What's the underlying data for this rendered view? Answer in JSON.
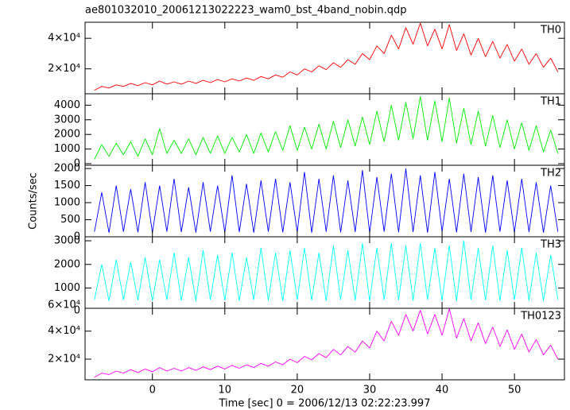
{
  "chart_data": [
    {
      "type": "line",
      "title": "ae801032010_20061213022223_wam0_bst_4band_nobin.qdp",
      "label": "TH0",
      "color": "#ff0000",
      "x": [
        -8,
        -7,
        -6,
        -5,
        -4,
        -3,
        -2,
        -1,
        0,
        1,
        2,
        3,
        4,
        5,
        6,
        7,
        8,
        9,
        10,
        11,
        12,
        13,
        14,
        15,
        16,
        17,
        18,
        19,
        20,
        21,
        22,
        23,
        24,
        25,
        26,
        27,
        28,
        29,
        30,
        31,
        32,
        33,
        34,
        35,
        36,
        37,
        38,
        39,
        40,
        41,
        42,
        43,
        44,
        45,
        46,
        47,
        48,
        49,
        50,
        51,
        52,
        53,
        54,
        55,
        56
      ],
      "values": [
        6000,
        8500,
        7500,
        9500,
        8500,
        10500,
        9000,
        11000,
        9500,
        12000,
        10000,
        11500,
        10000,
        12000,
        10500,
        12500,
        11000,
        13000,
        11500,
        13500,
        12000,
        14000,
        12500,
        15000,
        13500,
        16000,
        14500,
        18000,
        16000,
        20000,
        18000,
        22000,
        19500,
        24000,
        21000,
        26000,
        23000,
        30000,
        26000,
        35000,
        30000,
        42000,
        33000,
        47000,
        36000,
        50000,
        35000,
        46000,
        33000,
        49000,
        32000,
        43000,
        29000,
        40000,
        28000,
        38000,
        27000,
        36000,
        25000,
        33000,
        23000,
        30000,
        21000,
        27000,
        18000
      ],
      "xlim": [
        -9.3,
        56.9
      ],
      "ylim": [
        3700,
        50500
      ],
      "yticks": [
        {
          "value": 20000,
          "label": "2×10⁴"
        },
        {
          "value": 40000,
          "label": "4×10⁴"
        }
      ]
    },
    {
      "type": "line",
      "label": "TH1",
      "color": "#00ee00",
      "x": [
        -8,
        -7,
        -6,
        -5,
        -4,
        -3,
        -2,
        -1,
        0,
        1,
        2,
        3,
        4,
        5,
        6,
        7,
        8,
        9,
        10,
        11,
        12,
        13,
        14,
        15,
        16,
        17,
        18,
        19,
        20,
        21,
        22,
        23,
        24,
        25,
        26,
        27,
        28,
        29,
        30,
        31,
        32,
        33,
        34,
        35,
        36,
        37,
        38,
        39,
        40,
        41,
        42,
        43,
        44,
        45,
        46,
        47,
        48,
        49,
        50,
        51,
        52,
        53,
        54,
        55,
        56
      ],
      "values": [
        300,
        1300,
        500,
        1400,
        600,
        1500,
        500,
        1700,
        600,
        2400,
        700,
        1600,
        700,
        1700,
        600,
        1800,
        700,
        1900,
        700,
        1800,
        800,
        2000,
        700,
        2100,
        800,
        2200,
        900,
        2600,
        900,
        2500,
        1000,
        2700,
        1000,
        2900,
        1100,
        3000,
        1200,
        3200,
        1300,
        3600,
        1500,
        4000,
        1600,
        4200,
        1700,
        4600,
        1600,
        4300,
        1500,
        4500,
        1400,
        3800,
        1300,
        3600,
        1200,
        3300,
        1100,
        3000,
        1000,
        2800,
        900,
        2600,
        800,
        2300,
        700
      ],
      "xlim": [
        -9.3,
        56.9
      ],
      "ylim": [
        -110,
        4780
      ],
      "yticks": [
        0,
        1000,
        2000,
        3000,
        4000
      ]
    },
    {
      "type": "line",
      "label": "TH2",
      "ylabel": "Counts/sec",
      "color": "#0000ff",
      "x": [
        -8,
        -7,
        -6,
        -5,
        -4,
        -3,
        -2,
        -1,
        0,
        1,
        2,
        3,
        4,
        5,
        6,
        7,
        8,
        9,
        10,
        11,
        12,
        13,
        14,
        15,
        16,
        17,
        18,
        19,
        20,
        21,
        22,
        23,
        24,
        25,
        26,
        27,
        28,
        29,
        30,
        31,
        32,
        33,
        34,
        35,
        36,
        37,
        38,
        39,
        40,
        41,
        42,
        43,
        44,
        45,
        46,
        47,
        48,
        49,
        50,
        51,
        52,
        53,
        54,
        55,
        56
      ],
      "values": [
        150,
        1300,
        120,
        1500,
        150,
        1400,
        130,
        1600,
        120,
        1500,
        150,
        1700,
        140,
        1450,
        120,
        1600,
        150,
        1500,
        130,
        1800,
        140,
        1550,
        120,
        1650,
        150,
        1700,
        130,
        1600,
        140,
        1900,
        120,
        1700,
        150,
        1800,
        130,
        1650,
        140,
        1950,
        120,
        1750,
        150,
        1850,
        130,
        2000,
        140,
        1800,
        120,
        1900,
        150,
        1700,
        130,
        1850,
        140,
        1750,
        120,
        1800,
        150,
        1650,
        130,
        1700,
        140,
        1600,
        120,
        1500,
        150
      ],
      "xlim": [
        -9.3,
        56.9
      ],
      "ylim": [
        0,
        2095
      ],
      "yticks": [
        0,
        500,
        1000,
        1500,
        2000
      ]
    },
    {
      "type": "line",
      "label": "TH3",
      "color": "#00ffff",
      "x": [
        -8,
        -7,
        -6,
        -5,
        -4,
        -3,
        -2,
        -1,
        0,
        1,
        2,
        3,
        4,
        5,
        6,
        7,
        8,
        9,
        10,
        11,
        12,
        13,
        14,
        15,
        16,
        17,
        18,
        19,
        20,
        21,
        22,
        23,
        24,
        25,
        26,
        27,
        28,
        29,
        30,
        31,
        32,
        33,
        34,
        35,
        36,
        37,
        38,
        39,
        40,
        41,
        42,
        43,
        44,
        45,
        46,
        47,
        48,
        49,
        50,
        51,
        52,
        53,
        54,
        55,
        56
      ],
      "values": [
        500,
        2000,
        450,
        2200,
        500,
        2100,
        480,
        2300,
        460,
        2200,
        500,
        2500,
        470,
        2300,
        450,
        2600,
        500,
        2400,
        480,
        2500,
        460,
        2300,
        500,
        2700,
        470,
        2500,
        450,
        2600,
        500,
        2700,
        480,
        2500,
        460,
        2800,
        500,
        2600,
        470,
        2900,
        450,
        2700,
        500,
        2900,
        480,
        2800,
        460,
        2900,
        500,
        2700,
        470,
        2800,
        450,
        3000,
        500,
        2700,
        480,
        2800,
        460,
        2600,
        500,
        2700,
        470,
        2500,
        450,
        2400,
        500
      ],
      "xlim": [
        -9.3,
        56.9
      ],
      "ylim": [
        140,
        3170
      ],
      "yticks": [
        0,
        1000,
        2000,
        3000
      ]
    },
    {
      "type": "line",
      "label": "TH0123",
      "xlabel": "Time [sec] 0 = 2006/12/13 02:22:23.997",
      "color": "#ff00ff",
      "x": [
        -8,
        -7,
        -6,
        -5,
        -4,
        -3,
        -2,
        -1,
        0,
        1,
        2,
        3,
        4,
        5,
        6,
        7,
        8,
        9,
        10,
        11,
        12,
        13,
        14,
        15,
        16,
        17,
        18,
        19,
        20,
        21,
        22,
        23,
        24,
        25,
        26,
        27,
        28,
        29,
        30,
        31,
        32,
        33,
        34,
        35,
        36,
        37,
        38,
        39,
        40,
        41,
        42,
        43,
        44,
        45,
        46,
        47,
        48,
        49,
        50,
        51,
        52,
        53,
        54,
        55,
        56
      ],
      "values": [
        7000,
        10000,
        9000,
        11500,
        10000,
        12500,
        10500,
        13000,
        11000,
        14000,
        11500,
        13500,
        11500,
        14000,
        12000,
        14500,
        12500,
        15000,
        13000,
        15500,
        13500,
        16000,
        14000,
        17000,
        15000,
        18000,
        16000,
        20000,
        17500,
        22000,
        19500,
        24000,
        21000,
        27000,
        23000,
        29000,
        25000,
        33000,
        28000,
        40000,
        33000,
        47000,
        37000,
        52000,
        40000,
        55000,
        38000,
        52000,
        37000,
        56000,
        35000,
        49000,
        33000,
        46000,
        31000,
        43000,
        29000,
        41000,
        27000,
        38000,
        25000,
        34000,
        23000,
        30000,
        20000
      ],
      "xlim": [
        -9.3,
        56.9
      ],
      "ylim": [
        5260,
        56300
      ],
      "xticks": [
        0,
        10,
        20,
        30,
        40,
        50
      ],
      "yticks": [
        {
          "value": 20000,
          "label": "2×10⁴"
        },
        {
          "value": 40000,
          "label": "4×10⁴"
        },
        {
          "value": 60000,
          "label": "6×10⁴"
        }
      ]
    }
  ]
}
